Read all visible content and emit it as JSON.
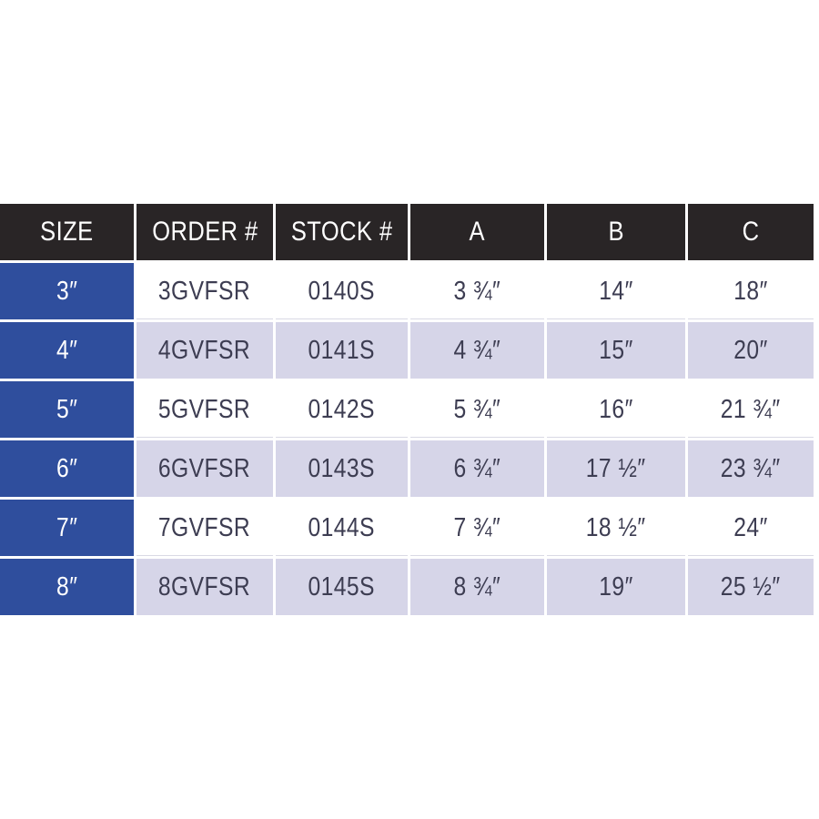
{
  "table": {
    "columns": [
      "SIZE",
      "ORDER #",
      "STOCK #",
      "A",
      "B",
      "C"
    ],
    "rows": [
      {
        "cells": [
          "3″",
          "3GVFSR",
          "0140S",
          "3 ¾″",
          "14″",
          "18″"
        ]
      },
      {
        "cells": [
          "4″",
          "4GVFSR",
          "0141S",
          "4 ¾″",
          "15″",
          "20″"
        ]
      },
      {
        "cells": [
          "5″",
          "5GVFSR",
          "0142S",
          "5 ¾″",
          "16″",
          "21 ¾″"
        ]
      },
      {
        "cells": [
          "6″",
          "6GVFSR",
          "0143S",
          "6 ¾″",
          "17 ½″",
          "23 ¾″"
        ]
      },
      {
        "cells": [
          "7″",
          "7GVFSR",
          "0144S",
          "7 ¾″",
          "18 ½″",
          "24″"
        ]
      },
      {
        "cells": [
          "8″",
          "8GVFSR",
          "0145S",
          "8 ¾″",
          "19″",
          "25 ½″"
        ]
      }
    ]
  },
  "colors": {
    "header_bg": "#292526",
    "header_text": "#ffffff",
    "size_column_bg": "#2f4e9d",
    "size_column_text": "#ffffff",
    "alt_row_bg": "#d6d5e8",
    "plain_row_bg": "#ffffff",
    "data_text": "#3d3d52",
    "page_bg": "#ffffff"
  }
}
